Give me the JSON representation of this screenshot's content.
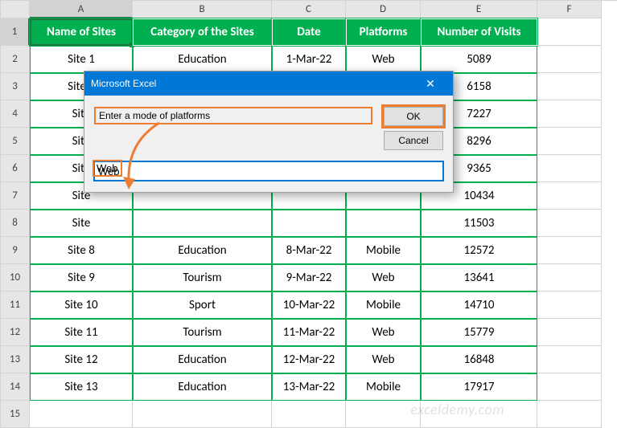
{
  "columns": [
    "",
    "A",
    "B",
    "C",
    "D",
    "E",
    "F"
  ],
  "header_row": [
    "Name of Sites",
    "Category of the Sites",
    "Date",
    "Platforms",
    "Number of Visits"
  ],
  "rows": [
    {
      "n": "2",
      "site": "Site 1",
      "cat": "Education",
      "date": "1-Mar-22",
      "plat": "Web",
      "visits": "5089"
    },
    {
      "n": "3",
      "site": "Site 2",
      "cat": "",
      "date": "",
      "plat": "",
      "visits": "6158"
    },
    {
      "n": "4",
      "site": "Site",
      "cat": "",
      "date": "",
      "plat": "",
      "visits": "7227"
    },
    {
      "n": "5",
      "site": "Site",
      "cat": "",
      "date": "",
      "plat": "",
      "visits": "8296"
    },
    {
      "n": "6",
      "site": "Site",
      "cat": "",
      "date": "",
      "plat": "",
      "visits": "9365"
    },
    {
      "n": "7",
      "site": "Site",
      "cat": "",
      "date": "",
      "plat": "",
      "visits": "10434"
    },
    {
      "n": "8",
      "site": "Site",
      "cat": "",
      "date": "",
      "plat": "",
      "visits": "11503"
    },
    {
      "n": "9",
      "site": "Site 8",
      "cat": "Education",
      "date": "8-Mar-22",
      "plat": "Mobile",
      "visits": "12572"
    },
    {
      "n": "10",
      "site": "Site 9",
      "cat": "Tourism",
      "date": "9-Mar-22",
      "plat": "Web",
      "visits": "13641"
    },
    {
      "n": "11",
      "site": "Site 10",
      "cat": "Sport",
      "date": "10-Mar-22",
      "plat": "Mobile",
      "visits": "14710"
    },
    {
      "n": "12",
      "site": "Site 11",
      "cat": "Tourism",
      "date": "11-Mar-22",
      "plat": "Web",
      "visits": "15779"
    },
    {
      "n": "13",
      "site": "Site 12",
      "cat": "Education",
      "date": "12-Mar-22",
      "plat": "Web",
      "visits": "16848"
    },
    {
      "n": "14",
      "site": "Site 13",
      "cat": "Education",
      "date": "13-Mar-22",
      "plat": "Mobile",
      "visits": "17917"
    }
  ],
  "last_row_label": "15",
  "dialog": {
    "title": "Microsoft Excel",
    "prompt": "Enter a mode of platforms",
    "ok": "OK",
    "cancel": "Cancel",
    "value": "Web"
  },
  "watermark": "exceldemy.com",
  "style": {
    "header_bg": "#00b050",
    "header_fg": "#ffffff",
    "grid_border": "#d4d4d4",
    "data_border": "#00b050",
    "highlight": "#ed7d31",
    "titlebar_bg": "#0078d7",
    "dialog_bg": "#f0f0f0"
  }
}
